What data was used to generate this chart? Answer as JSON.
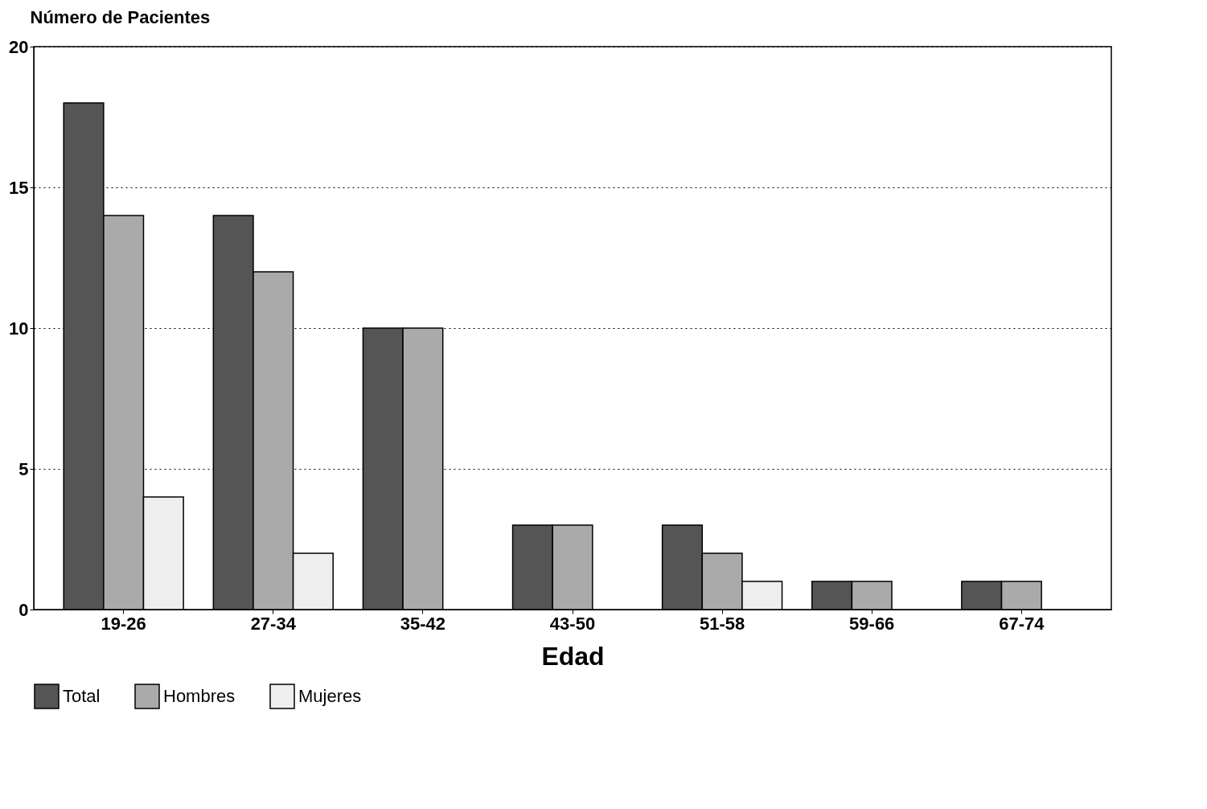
{
  "chart_data": {
    "type": "bar",
    "xlabel": "Edad",
    "ylabel": "Número de Pacientes",
    "categories": [
      "19-26",
      "27-34",
      "35-42",
      "43-50",
      "51-58",
      "59-66",
      "67-74"
    ],
    "series": [
      {
        "name": "Total",
        "color": "#555555",
        "values": [
          18,
          14,
          10,
          3,
          3,
          1,
          1
        ]
      },
      {
        "name": "Hombres",
        "color": "#aaaaaa",
        "values": [
          14,
          12,
          10,
          3,
          2,
          1,
          1
        ]
      },
      {
        "name": "Mujeres",
        "color": "#eeeeee",
        "values": [
          4,
          2,
          null,
          null,
          1,
          null,
          null
        ]
      }
    ],
    "ylim": [
      0,
      20
    ],
    "yticks": [
      0,
      5,
      10,
      15,
      20
    ],
    "grid": "y",
    "legend": "bottom"
  }
}
